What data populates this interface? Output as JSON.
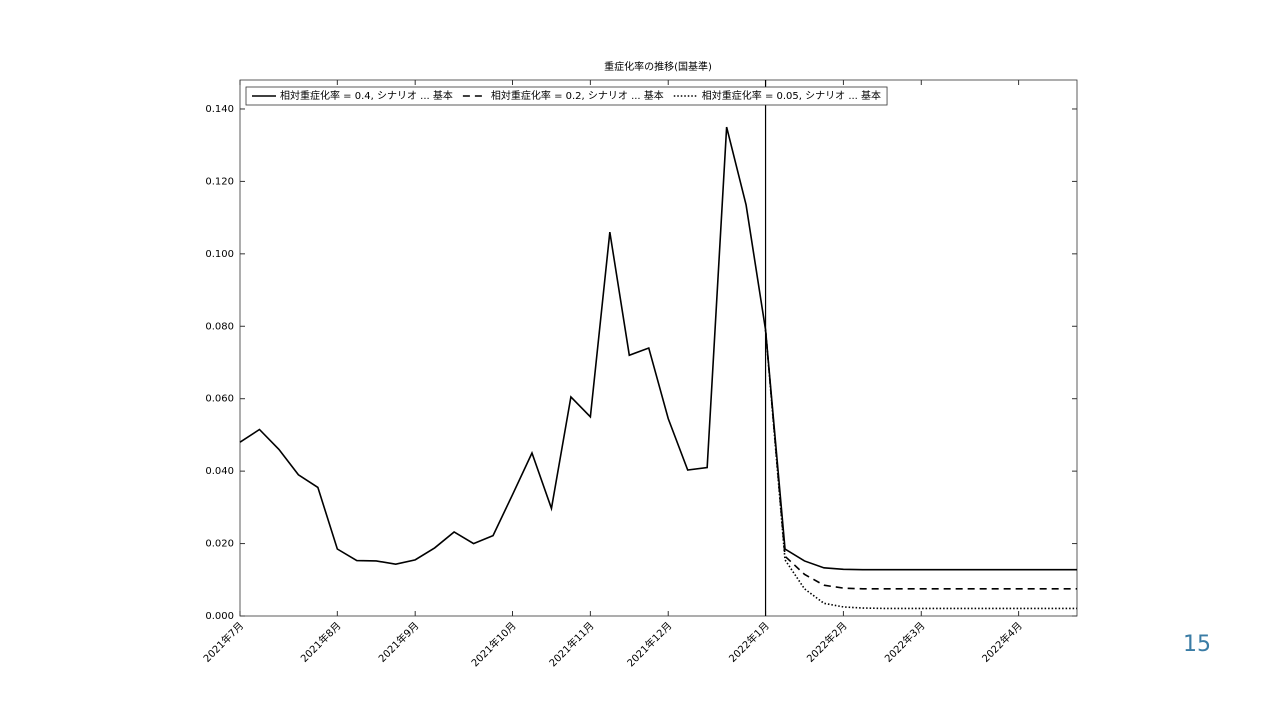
{
  "chart_data": {
    "type": "line",
    "title": "重症化率の推移(国基準)",
    "x": [
      0,
      1,
      2,
      3,
      4,
      5,
      6,
      7,
      8,
      9,
      10,
      11,
      12,
      13,
      14,
      15,
      16,
      17,
      18,
      19,
      20,
      21,
      22,
      23,
      24,
      25,
      26,
      27,
      28,
      29,
      30,
      31,
      32,
      33,
      34,
      35,
      36,
      37,
      38,
      39,
      40,
      41,
      42,
      43
    ],
    "xlim": [
      0,
      43
    ],
    "xticks": [
      {
        "value": 0,
        "label": "2021年7月"
      },
      {
        "value": 5,
        "label": "2021年8月"
      },
      {
        "value": 9,
        "label": "2021年9月"
      },
      {
        "value": 14,
        "label": "2021年10月"
      },
      {
        "value": 18,
        "label": "2021年11月"
      },
      {
        "value": 22,
        "label": "2021年12月"
      },
      {
        "value": 27,
        "label": "2022年1月"
      },
      {
        "value": 31,
        "label": "2022年2月"
      },
      {
        "value": 35,
        "label": "2022年3月"
      },
      {
        "value": 40,
        "label": "2022年4月"
      }
    ],
    "ylim": [
      0,
      0.148
    ],
    "yticks": [
      {
        "value": 0,
        "label": "0.000"
      },
      {
        "value": 0.02,
        "label": "0.020"
      },
      {
        "value": 0.04,
        "label": "0.040"
      },
      {
        "value": 0.06,
        "label": "0.060"
      },
      {
        "value": 0.08,
        "label": "0.080"
      },
      {
        "value": 0.1,
        "label": "0.100"
      },
      {
        "value": 0.12,
        "label": "0.120"
      },
      {
        "value": 0.14,
        "label": "0.140"
      }
    ],
    "vline": 27,
    "legend": "top-left",
    "series": [
      {
        "name": "相対重症化率 = 0.4, シナリオ ... 基本",
        "color": "#000000",
        "dash": "solid",
        "values": [
          0.048,
          0.0515,
          0.046,
          0.039,
          0.0355,
          0.0185,
          0.0153,
          0.0152,
          0.0143,
          0.0155,
          0.0188,
          0.0232,
          0.02,
          0.0222,
          0.0335,
          0.045,
          0.0297,
          0.0605,
          0.055,
          0.106,
          0.072,
          0.074,
          0.0545,
          0.0403,
          0.041,
          0.135,
          0.1135,
          0.079,
          0.0185,
          0.0152,
          0.0133,
          0.0129,
          0.0128,
          0.0128,
          0.0128,
          0.0128,
          0.0128,
          0.0128,
          0.0128,
          0.0128,
          0.0128,
          0.0128,
          0.0128,
          0.0128
        ]
      },
      {
        "name": "相対重症化率 = 0.2, シナリオ ... 基本",
        "color": "#000000",
        "dash": "dashed",
        "values": [
          null,
          null,
          null,
          null,
          null,
          null,
          null,
          null,
          null,
          null,
          null,
          null,
          null,
          null,
          null,
          null,
          null,
          null,
          null,
          null,
          null,
          null,
          null,
          null,
          null,
          null,
          null,
          0.079,
          0.0165,
          0.0115,
          0.0085,
          0.0077,
          0.0075,
          0.0075,
          0.0075,
          0.0075,
          0.0075,
          0.0075,
          0.0075,
          0.0075,
          0.0075,
          0.0075,
          0.0075,
          0.0075
        ]
      },
      {
        "name": "相対重症化率 = 0.05, シナリオ ... 基本",
        "color": "#000000",
        "dash": "dotted",
        "values": [
          null,
          null,
          null,
          null,
          null,
          null,
          null,
          null,
          null,
          null,
          null,
          null,
          null,
          null,
          null,
          null,
          null,
          null,
          null,
          null,
          null,
          null,
          null,
          null,
          null,
          null,
          null,
          0.079,
          0.0155,
          0.0075,
          0.0035,
          0.0025,
          0.0022,
          0.0021,
          0.0021,
          0.0021,
          0.0021,
          0.0021,
          0.0021,
          0.0021,
          0.0021,
          0.0021,
          0.0021,
          0.0021
        ]
      }
    ]
  },
  "page_number": "15"
}
